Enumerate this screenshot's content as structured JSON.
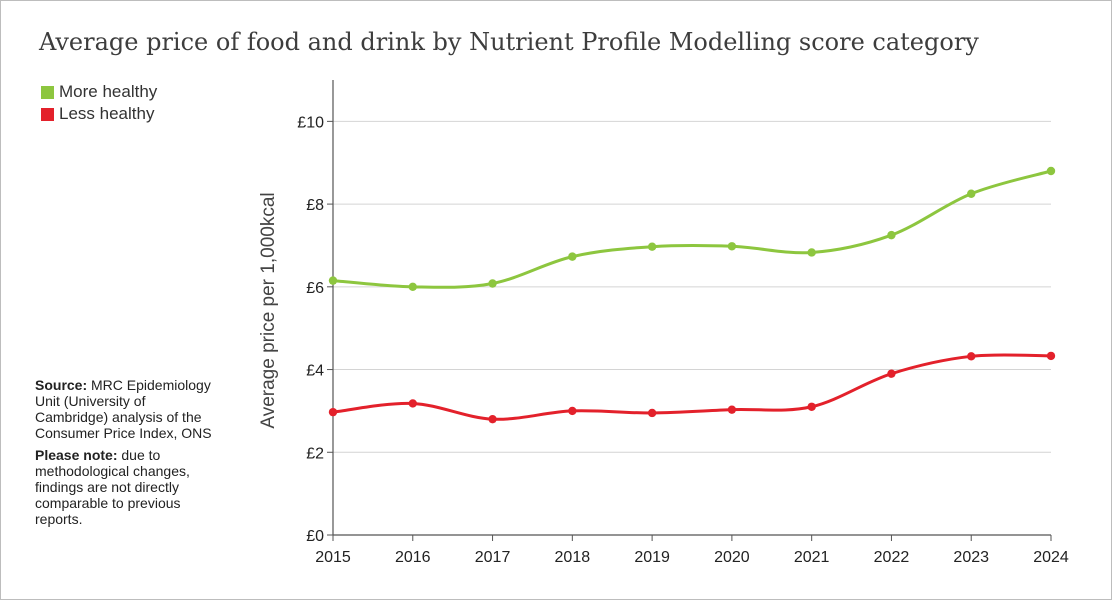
{
  "chart_data": {
    "type": "line",
    "title": "Average price of food and drink by Nutrient Profile Modelling score category",
    "xlabel": "",
    "ylabel": "Average price per 1,000kcal",
    "categories": [
      "2015",
      "2016",
      "2017",
      "2018",
      "2019",
      "2020",
      "2021",
      "2022",
      "2023",
      "2024"
    ],
    "series": [
      {
        "name": "More healthy",
        "color": "#8dc63f",
        "values": [
          6.15,
          6.0,
          6.08,
          6.73,
          6.97,
          6.98,
          6.83,
          7.25,
          8.25,
          8.8
        ]
      },
      {
        "name": "Less healthy",
        "color": "#e3212b",
        "values": [
          2.97,
          3.18,
          2.8,
          3.0,
          2.95,
          3.03,
          3.1,
          3.9,
          4.32,
          4.33
        ]
      }
    ],
    "ylim": [
      0,
      11
    ],
    "yticks": [
      0,
      2,
      4,
      6,
      8,
      10
    ],
    "ytick_labels": [
      "£0",
      "£2",
      "£4",
      "£6",
      "£8",
      "£10"
    ],
    "grid": true,
    "legend_position": "top-left"
  },
  "notes": {
    "source_label": "Source:",
    "source_text": " MRC Epidemiology Unit (University of Cambridge) analysis of the Consumer Price Index, ONS",
    "note_label": "Please note:",
    "note_text": " due to methodological changes, findings are not directly comparable to previous reports."
  }
}
